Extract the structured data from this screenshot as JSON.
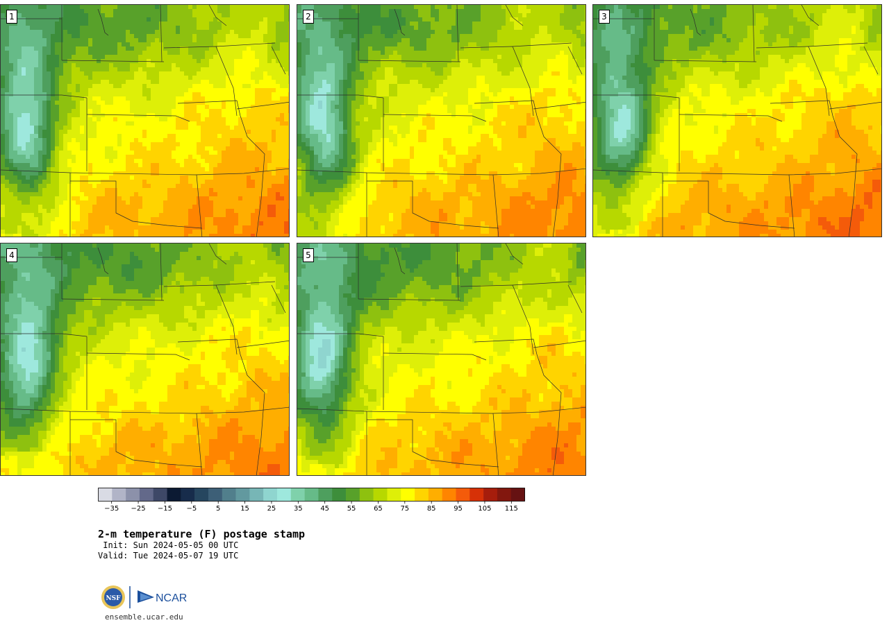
{
  "panels": [
    {
      "label": "1",
      "variant": 0
    },
    {
      "label": "2",
      "variant": 1
    },
    {
      "label": "3",
      "variant": 2
    },
    {
      "label": "4",
      "variant": 3
    },
    {
      "label": "5",
      "variant": 4
    }
  ],
  "colorbar": {
    "colors": [
      "#d9dbe4",
      "#b1b4c7",
      "#8c91aa",
      "#63698a",
      "#3e4867",
      "#0c1a33",
      "#172c4b",
      "#26465f",
      "#3d5f77",
      "#517f8c",
      "#62999f",
      "#77b6b6",
      "#8fd5cf",
      "#9ee8dd",
      "#7fd1ab",
      "#66bb88",
      "#4e9f5e",
      "#3d8e3b",
      "#58a12a",
      "#8ec10f",
      "#b7d800",
      "#deef08",
      "#ffff00",
      "#ffd400",
      "#ffae00",
      "#ff8500",
      "#f45b0a",
      "#d63107",
      "#a61d0c",
      "#82170e",
      "#661212"
    ],
    "tick_labels": [
      "−35",
      "−25",
      "−15",
      "−5",
      "5",
      "15",
      "25",
      "35",
      "45",
      "55",
      "65",
      "75",
      "85",
      "95",
      "105",
      "115"
    ],
    "range": [
      -40,
      120
    ],
    "tick_start": -35,
    "tick_step": 10
  },
  "title": "2-m temperature (F) postage stamp",
  "init": " Init: Sun 2024-05-05 00 UTC",
  "valid": "Valid: Tue 2024-05-07 19 UTC",
  "logos": {
    "nsf": "NSF",
    "ncar": "NCAR"
  },
  "url": "ensemble.ucar.edu"
}
